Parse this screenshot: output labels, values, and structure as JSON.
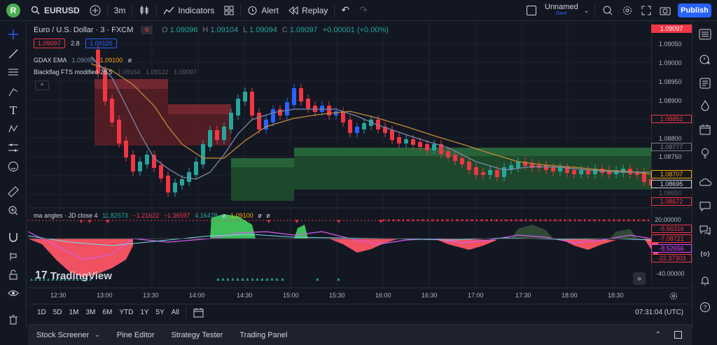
{
  "topbar": {
    "avatar_letter": "R",
    "symbol": "EURUSD",
    "interval": "3m",
    "indicators_label": "Indicators",
    "alert_label": "Alert",
    "replay_label": "Replay",
    "layout_name": "Unnamed",
    "layout_status": "Save",
    "publish_label": "Publish"
  },
  "chart": {
    "title": "Euro / U.S. Dollar · 3 · FXCM",
    "ohlc": {
      "o_label": "O",
      "o": "1.09096",
      "h_label": "H",
      "h": "1.09104",
      "l_label": "L",
      "l": "1.09094",
      "c_label": "C",
      "c": "1.09097",
      "change": "+0.00001 (+0.00%)"
    },
    "bid": "1.09097",
    "spread": "2.8",
    "ask": "1.09125",
    "indicator1": {
      "name": "GDAX EMA",
      "v1": "1.09095",
      "v2": "1.09100",
      "v3": "ø"
    },
    "indicator2": {
      "name": "Blackflag FTS modified 28 5",
      "v1": "1.09164",
      "v2": "1.09122",
      "v3": "1.09097"
    },
    "indicator3": {
      "name": "ma angles · JD close 4",
      "v1": "11.82573",
      "v2": "−1.21622",
      "v3": "−1.36597",
      "v4": "4.16478",
      "v5": "ø",
      "v6": "1.09100",
      "v7": "ø",
      "v8": "ø"
    },
    "watermark": "TradingView"
  },
  "price_axis": {
    "ticks": [
      "1.09050",
      "1.09000",
      "1.08950",
      "1.08900",
      "1.08850",
      "1.08800",
      "1.08750",
      "1.08700",
      "1.08650"
    ],
    "current": "1.09097",
    "boxes": [
      {
        "value": "1.08852",
        "color": "#f23645"
      },
      {
        "value": "1.08777",
        "color": "#787b86"
      },
      {
        "value": "1.08707",
        "color": "#f7a600"
      },
      {
        "value": "1.08695",
        "color": "#d1d4dc"
      },
      {
        "value": "1.08672",
        "color": "#f23645"
      }
    ]
  },
  "osc_axis": {
    "top": "20.00000",
    "bottom": "-40.00000",
    "boxes": [
      {
        "value": "-5.56316",
        "color": "#f23645"
      },
      {
        "value": "-7.08721",
        "color": "#f23645"
      },
      {
        "value": "-8.52656",
        "color": "#e040fb"
      },
      {
        "value": "-22.37303",
        "color": "#f23645"
      }
    ]
  },
  "time_axis": [
    "12:30",
    "13:00",
    "13:30",
    "14:00",
    "14:30",
    "15:00",
    "15:30",
    "16:00",
    "16:30",
    "17:00",
    "17:30",
    "18:00",
    "18:30"
  ],
  "bottombar": {
    "ranges": [
      "1D",
      "5D",
      "1M",
      "3M",
      "6M",
      "YTD",
      "1Y",
      "5Y",
      "All"
    ],
    "clock": "07:31:04 (UTC)"
  },
  "footer": {
    "tabs": [
      "Stock Screener",
      "Pine Editor",
      "Strategy Tester",
      "Trading Panel"
    ]
  },
  "colors": {
    "bg": "#131722",
    "up": "#2962ff",
    "down": "#f23645",
    "green": "#26a69a",
    "orange": "#f7a600",
    "accent": "#2962ff"
  }
}
